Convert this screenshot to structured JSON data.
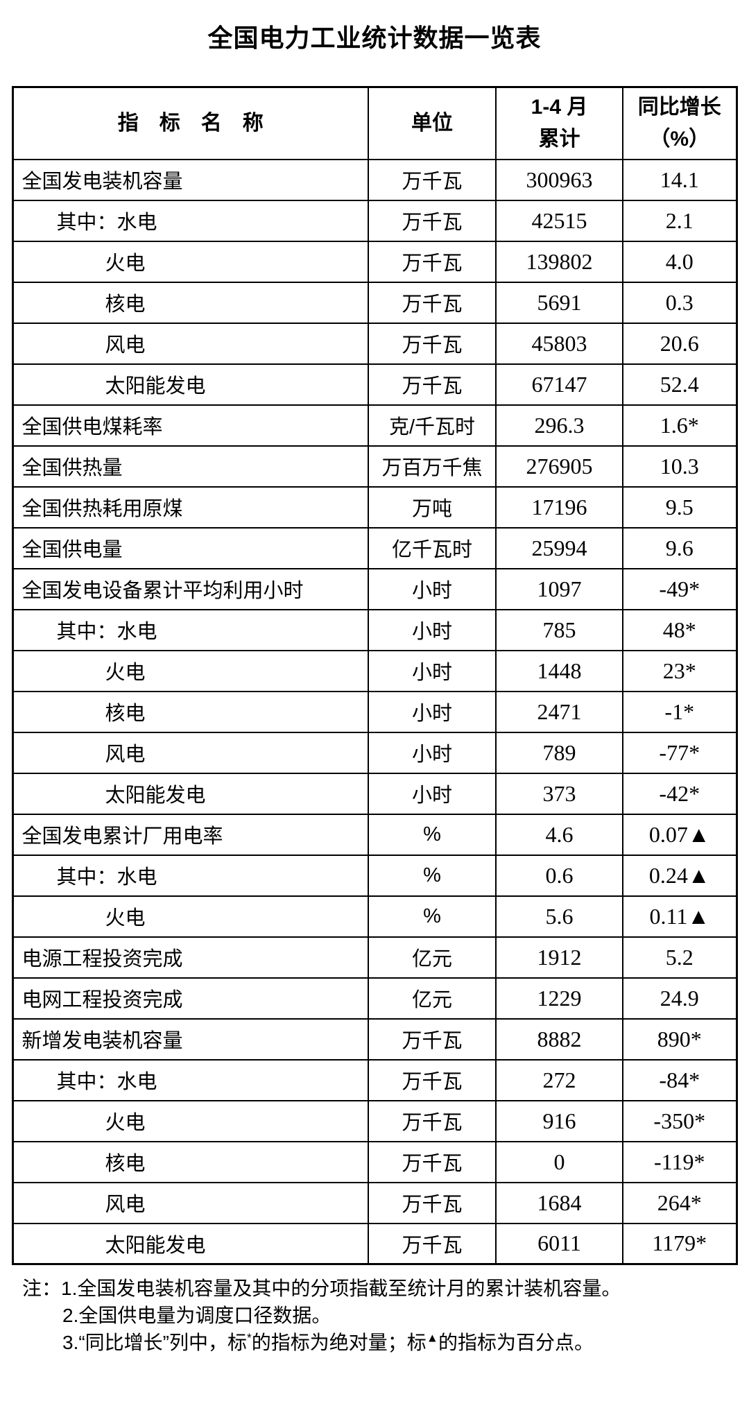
{
  "title": "全国电力工业统计数据一览表",
  "table": {
    "headers": {
      "indicator": "指　标　名　称",
      "unit": "单位",
      "period_line1": "1-4 月",
      "period_line2": "累计",
      "growth_line1": "同比增长",
      "growth_line2": "（%）"
    },
    "rows": [
      {
        "indicator": "全国发电装机容量",
        "indent": 0,
        "unit": "万千瓦",
        "value": "300963",
        "growth": "14.1"
      },
      {
        "indicator": "其中：水电",
        "indent": 1,
        "unit": "万千瓦",
        "value": "42515",
        "growth": "2.1"
      },
      {
        "indicator": "火电",
        "indent": 2,
        "unit": "万千瓦",
        "value": "139802",
        "growth": "4.0"
      },
      {
        "indicator": "核电",
        "indent": 2,
        "unit": "万千瓦",
        "value": "5691",
        "growth": "0.3"
      },
      {
        "indicator": "风电",
        "indent": 2,
        "unit": "万千瓦",
        "value": "45803",
        "growth": "20.6"
      },
      {
        "indicator": "太阳能发电",
        "indent": 2,
        "unit": "万千瓦",
        "value": "67147",
        "growth": "52.4"
      },
      {
        "indicator": "全国供电煤耗率",
        "indent": 0,
        "unit": "克/千瓦时",
        "value": "296.3",
        "growth": "1.6*"
      },
      {
        "indicator": "全国供热量",
        "indent": 0,
        "unit": "万百万千焦",
        "value": "276905",
        "growth": "10.3"
      },
      {
        "indicator": "全国供热耗用原煤",
        "indent": 0,
        "unit": "万吨",
        "value": "17196",
        "growth": "9.5"
      },
      {
        "indicator": "全国供电量",
        "indent": 0,
        "unit": "亿千瓦时",
        "value": "25994",
        "growth": "9.6"
      },
      {
        "indicator": "全国发电设备累计平均利用小时",
        "indent": 0,
        "unit": "小时",
        "value": "1097",
        "growth": "-49*"
      },
      {
        "indicator": "其中：水电",
        "indent": 1,
        "unit": "小时",
        "value": "785",
        "growth": "48*"
      },
      {
        "indicator": "火电",
        "indent": 2,
        "unit": "小时",
        "value": "1448",
        "growth": "23*"
      },
      {
        "indicator": "核电",
        "indent": 2,
        "unit": "小时",
        "value": "2471",
        "growth": "-1*"
      },
      {
        "indicator": "风电",
        "indent": 2,
        "unit": "小时",
        "value": "789",
        "growth": "-77*"
      },
      {
        "indicator": "太阳能发电",
        "indent": 2,
        "unit": "小时",
        "value": "373",
        "growth": "-42*"
      },
      {
        "indicator": "全国发电累计厂用电率",
        "indent": 0,
        "unit": "%",
        "value": "4.6",
        "growth": "0.07▲"
      },
      {
        "indicator": "其中：水电",
        "indent": 1,
        "unit": "%",
        "value": "0.6",
        "growth": "0.24▲"
      },
      {
        "indicator": "火电",
        "indent": 2,
        "unit": "%",
        "value": "5.6",
        "growth": "0.11▲"
      },
      {
        "indicator": "电源工程投资完成",
        "indent": 0,
        "unit": "亿元",
        "value": "1912",
        "growth": "5.2"
      },
      {
        "indicator": "电网工程投资完成",
        "indent": 0,
        "unit": "亿元",
        "value": "1229",
        "growth": "24.9"
      },
      {
        "indicator": "新增发电装机容量",
        "indent": 0,
        "unit": "万千瓦",
        "value": "8882",
        "growth": "890*"
      },
      {
        "indicator": "其中：水电",
        "indent": 1,
        "unit": "万千瓦",
        "value": "272",
        "growth": "-84*"
      },
      {
        "indicator": "火电",
        "indent": 2,
        "unit": "万千瓦",
        "value": "916",
        "growth": "-350*"
      },
      {
        "indicator": "核电",
        "indent": 2,
        "unit": "万千瓦",
        "value": "0",
        "growth": "-119*"
      },
      {
        "indicator": "风电",
        "indent": 2,
        "unit": "万千瓦",
        "value": "1684",
        "growth": "264*"
      },
      {
        "indicator": "太阳能发电",
        "indent": 2,
        "unit": "万千瓦",
        "value": "6011",
        "growth": "1179*"
      }
    ]
  },
  "notes": {
    "label": "注：",
    "items": [
      {
        "text": "1.全国发电装机容量及其中的分项指截至统计月的累计装机容量。"
      },
      {
        "text": "2.全国供电量为调度口径数据。"
      },
      {
        "parts": {
          "a": "3.“同比增长”列中，标",
          "sup1": "*",
          "b": "的指标为绝对量；标",
          "sup2": "▲",
          "c": "的指标为百分点。"
        }
      }
    ]
  },
  "colors": {
    "text": "#000000",
    "border": "#000000",
    "background": "#ffffff"
  }
}
